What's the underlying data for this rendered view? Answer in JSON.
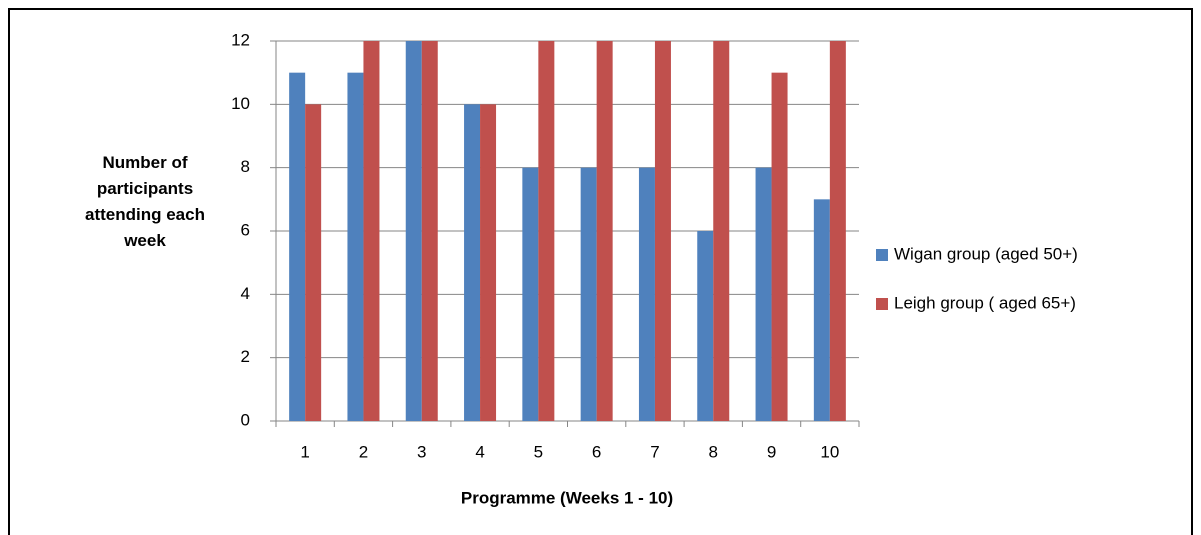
{
  "chart_data": {
    "type": "bar",
    "y_label": "Number of participants attending each week",
    "x_label": "Programme  (Weeks 1 - 10)",
    "categories": [
      "1",
      "2",
      "3",
      "4",
      "5",
      "6",
      "7",
      "8",
      "9",
      "10"
    ],
    "series": [
      {
        "name": "Wigan group (aged 50+)",
        "color": "#4f81bd",
        "values": [
          11,
          11,
          12,
          10,
          8,
          8,
          8,
          6,
          8,
          7
        ]
      },
      {
        "name": "Leigh group ( aged 65+)",
        "color": "#c0504d",
        "values": [
          10,
          12,
          12,
          10,
          12,
          12,
          12,
          12,
          11,
          12
        ]
      }
    ],
    "ylim": [
      0,
      12
    ],
    "yticks": [
      0,
      2,
      4,
      6,
      8,
      10,
      12
    ],
    "grid": true,
    "legend": "right"
  }
}
